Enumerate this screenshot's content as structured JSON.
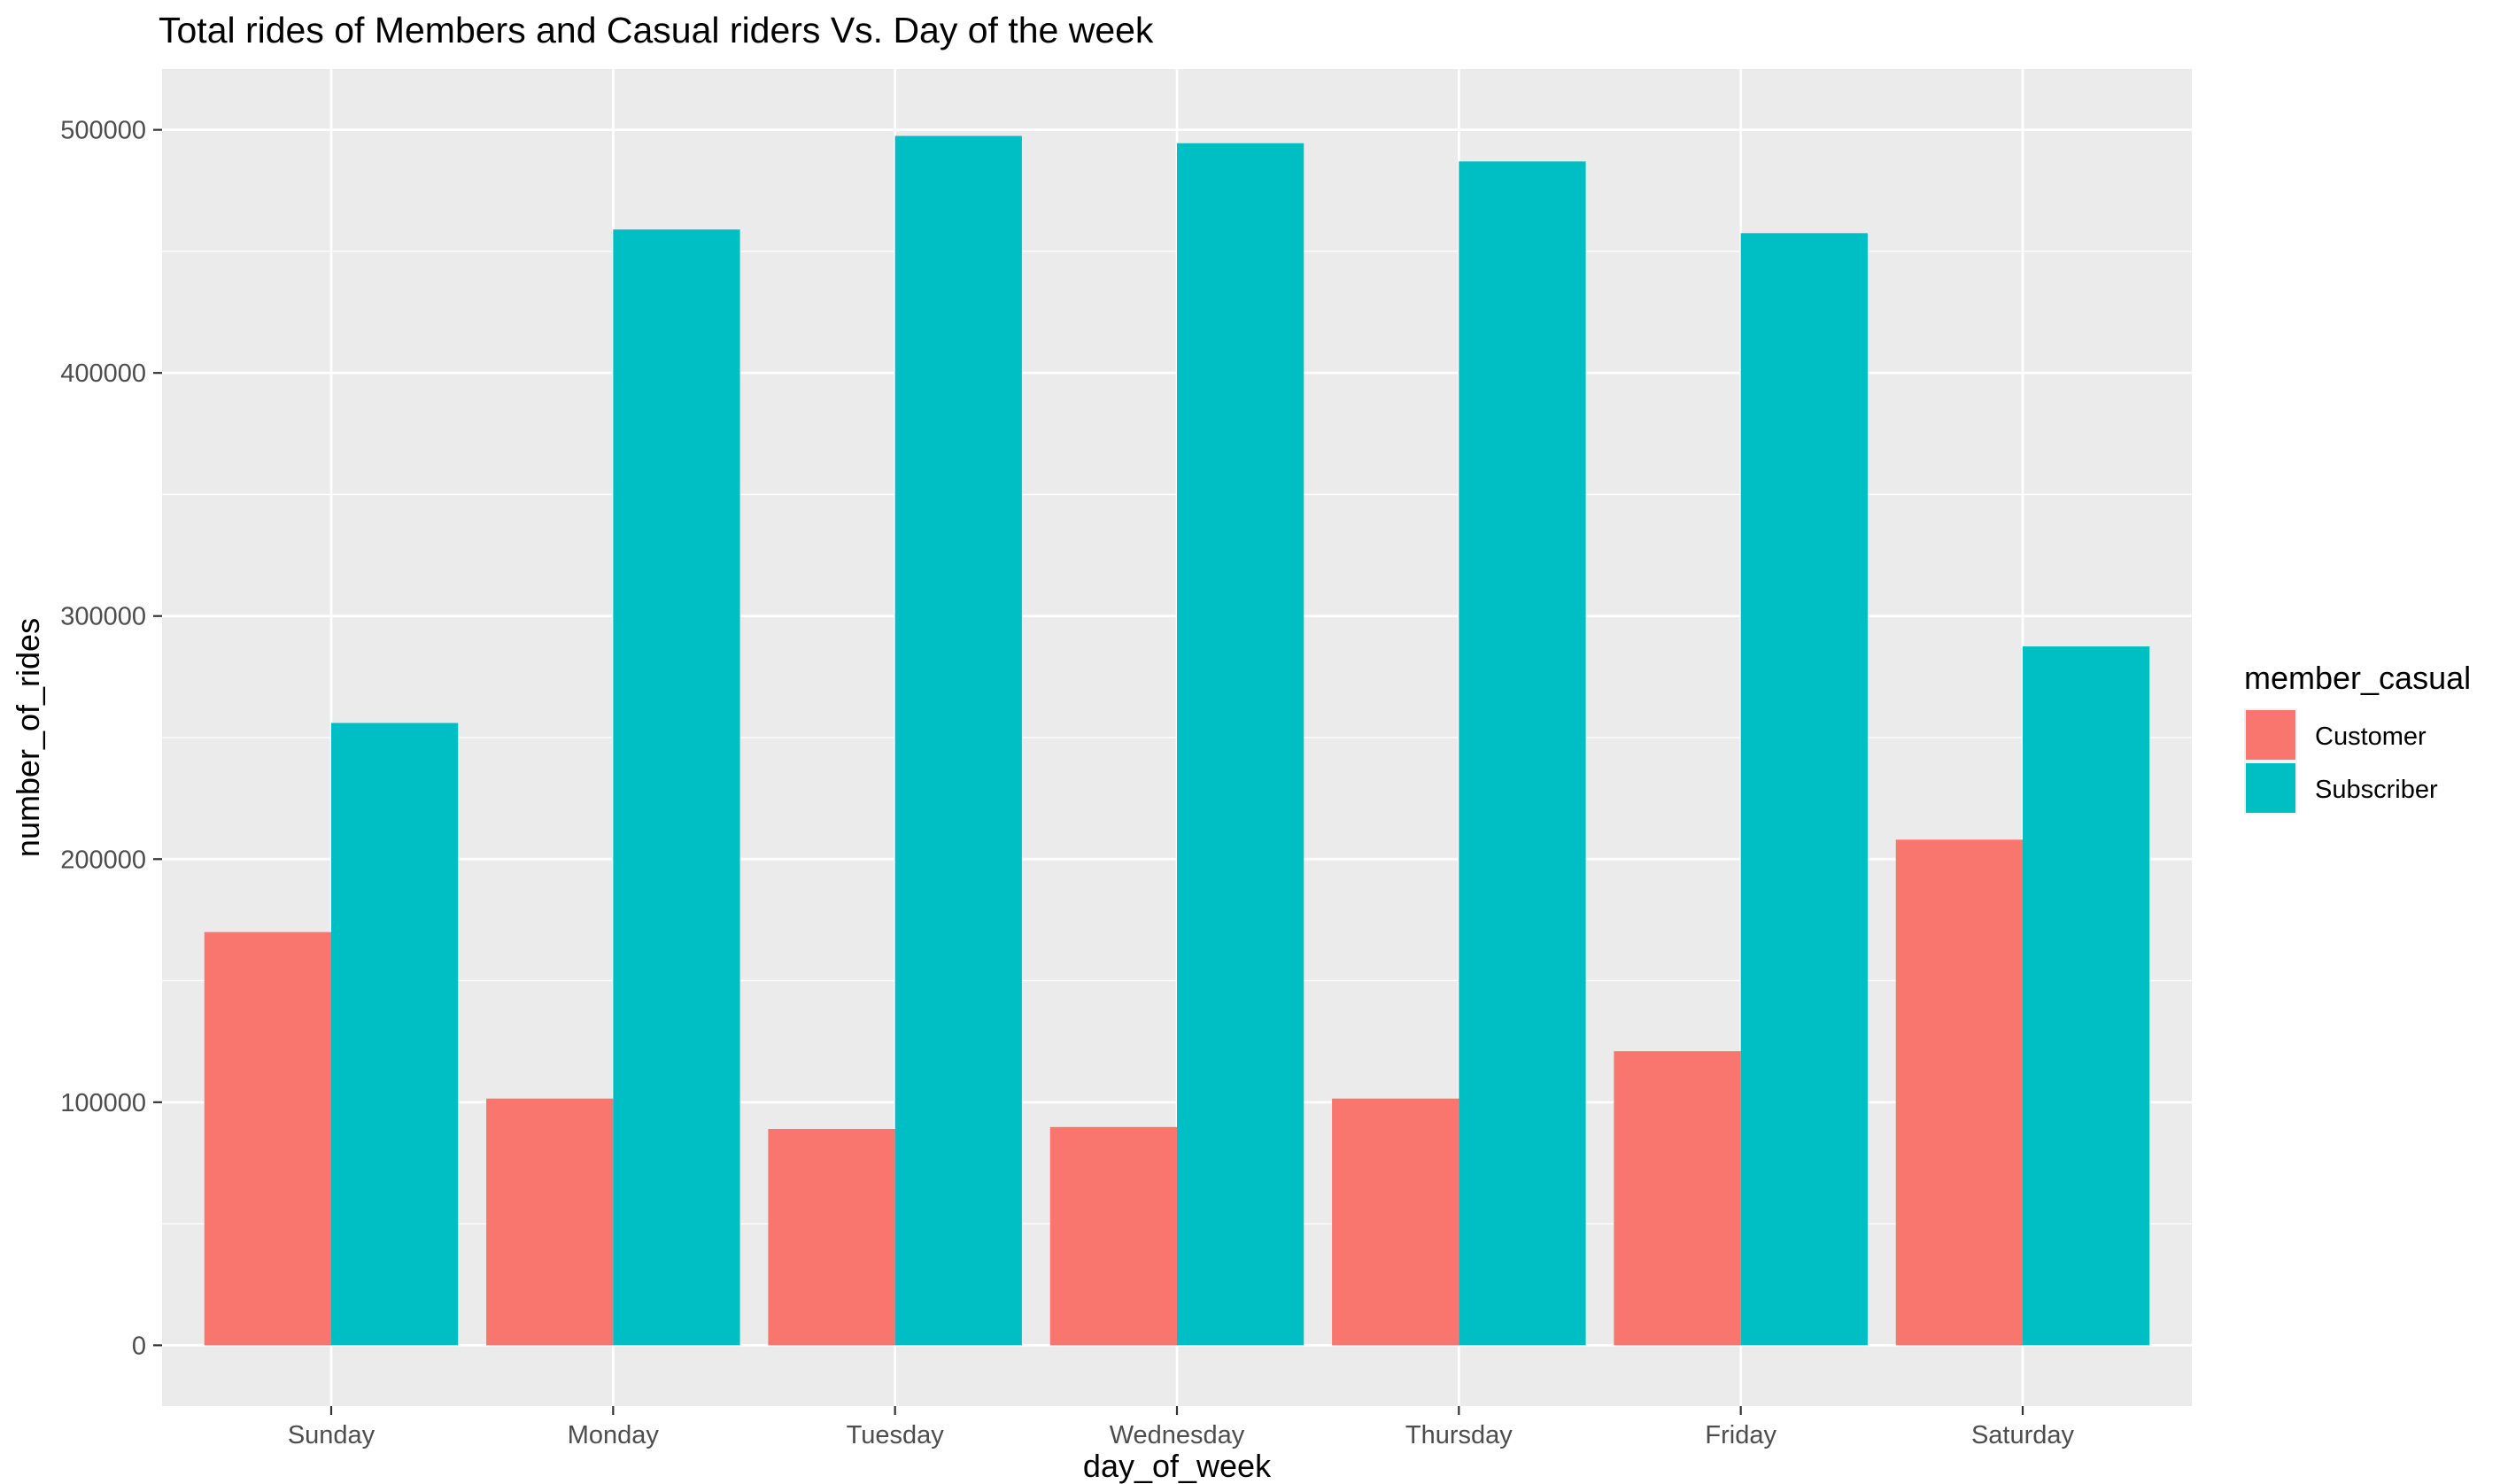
{
  "chart_data": {
    "type": "bar",
    "title": "Total rides of Members and Casual riders Vs. Day of the week",
    "xlabel": "day_of_week",
    "ylabel": "number_of_rides",
    "categories": [
      "Sunday",
      "Monday",
      "Tuesday",
      "Wednesday",
      "Thursday",
      "Friday",
      "Saturday"
    ],
    "series": [
      {
        "name": "Customer",
        "color": "#F8766D",
        "values": [
          170000,
          101500,
          89000,
          89800,
          101500,
          121000,
          208000
        ]
      },
      {
        "name": "Subscriber",
        "color": "#00BFC4",
        "values": [
          256000,
          459000,
          497500,
          494500,
          487000,
          457500,
          287500
        ]
      }
    ],
    "ylim": [
      -25000,
      525000
    ],
    "yticks": [
      0,
      100000,
      200000,
      300000,
      400000,
      500000
    ],
    "ytick_labels": [
      "0",
      "100000",
      "200000",
      "300000",
      "400000",
      "500000"
    ],
    "grid": true,
    "legend": {
      "title": "member_casual",
      "position": "right"
    }
  }
}
